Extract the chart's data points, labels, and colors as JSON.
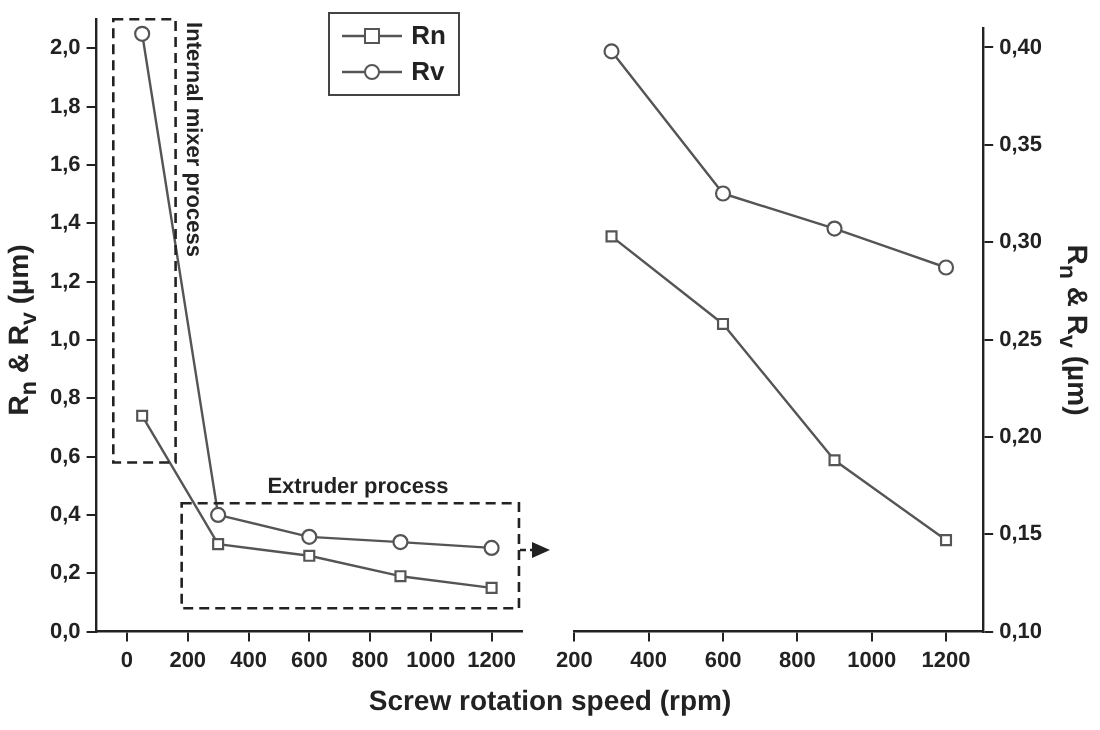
{
  "chart_data": [
    {
      "type": "line",
      "xlabel": "Screw rotation speed (rpm)",
      "ylabel": "R$_{n}$ & R$_{v}$ (µm)",
      "annotations": [
        "Internal mixer process",
        "Extruder process"
      ],
      "xlim": [
        -100,
        1300
      ],
      "xticks": [
        0,
        200,
        400,
        600,
        800,
        1000,
        1200
      ],
      "ylim": [
        0,
        2.1
      ],
      "yticks": [
        {
          "value": 0,
          "label": "0,0"
        },
        {
          "value": 0.2,
          "label": "0,2"
        },
        {
          "value": 0.4,
          "label": "0,4"
        },
        {
          "value": 0.6,
          "label": "0,6"
        },
        {
          "value": 0.8,
          "label": "0,8"
        },
        {
          "value": 1.0,
          "label": "1,0"
        },
        {
          "value": 1.2,
          "label": "1,2"
        },
        {
          "value": 1.4,
          "label": "1,4"
        },
        {
          "value": 1.6,
          "label": "1,6"
        },
        {
          "value": 1.8,
          "label": "1,8"
        },
        {
          "value": 2.0,
          "label": "2,0"
        }
      ],
      "grid": false,
      "legend": "top right",
      "x": [
        50,
        300,
        600,
        900,
        1200
      ],
      "series": [
        {
          "name": "Rn",
          "color": "#555555",
          "marker": "square",
          "values": [
            0.74,
            0.3,
            0.26,
            0.19,
            0.15
          ]
        },
        {
          "name": "Rv",
          "color": "#555555",
          "marker": "circle",
          "values": [
            2.05,
            0.4,
            0.325,
            0.307,
            0.287
          ]
        }
      ]
    },
    {
      "type": "line",
      "y2label": "R$_{n}$ & R$_{v}$ (µm)",
      "xlim": [
        200,
        1300
      ],
      "xticks": [
        200,
        400,
        600,
        800,
        1000,
        1200
      ],
      "y2lim": [
        0.1,
        0.41
      ],
      "y2ticks": [
        {
          "value": 0.1,
          "label": "0,10"
        },
        {
          "value": 0.15,
          "label": "0,15"
        },
        {
          "value": 0.2,
          "label": "0,20"
        },
        {
          "value": 0.25,
          "label": "0,25"
        },
        {
          "value": 0.3,
          "label": "0,30"
        },
        {
          "value": 0.35,
          "label": "0,35"
        },
        {
          "value": 0.4,
          "label": "0,40"
        }
      ],
      "grid": false,
      "x": [
        300,
        600,
        900,
        1200
      ],
      "series": [
        {
          "color": "#555555",
          "marker": "square",
          "axis": "y2",
          "values": [
            0.303,
            0.258,
            0.188,
            0.147
          ]
        },
        {
          "color": "#555555",
          "marker": "circle",
          "axis": "y2",
          "values": [
            0.398,
            0.325,
            0.307,
            0.287
          ]
        }
      ]
    }
  ]
}
